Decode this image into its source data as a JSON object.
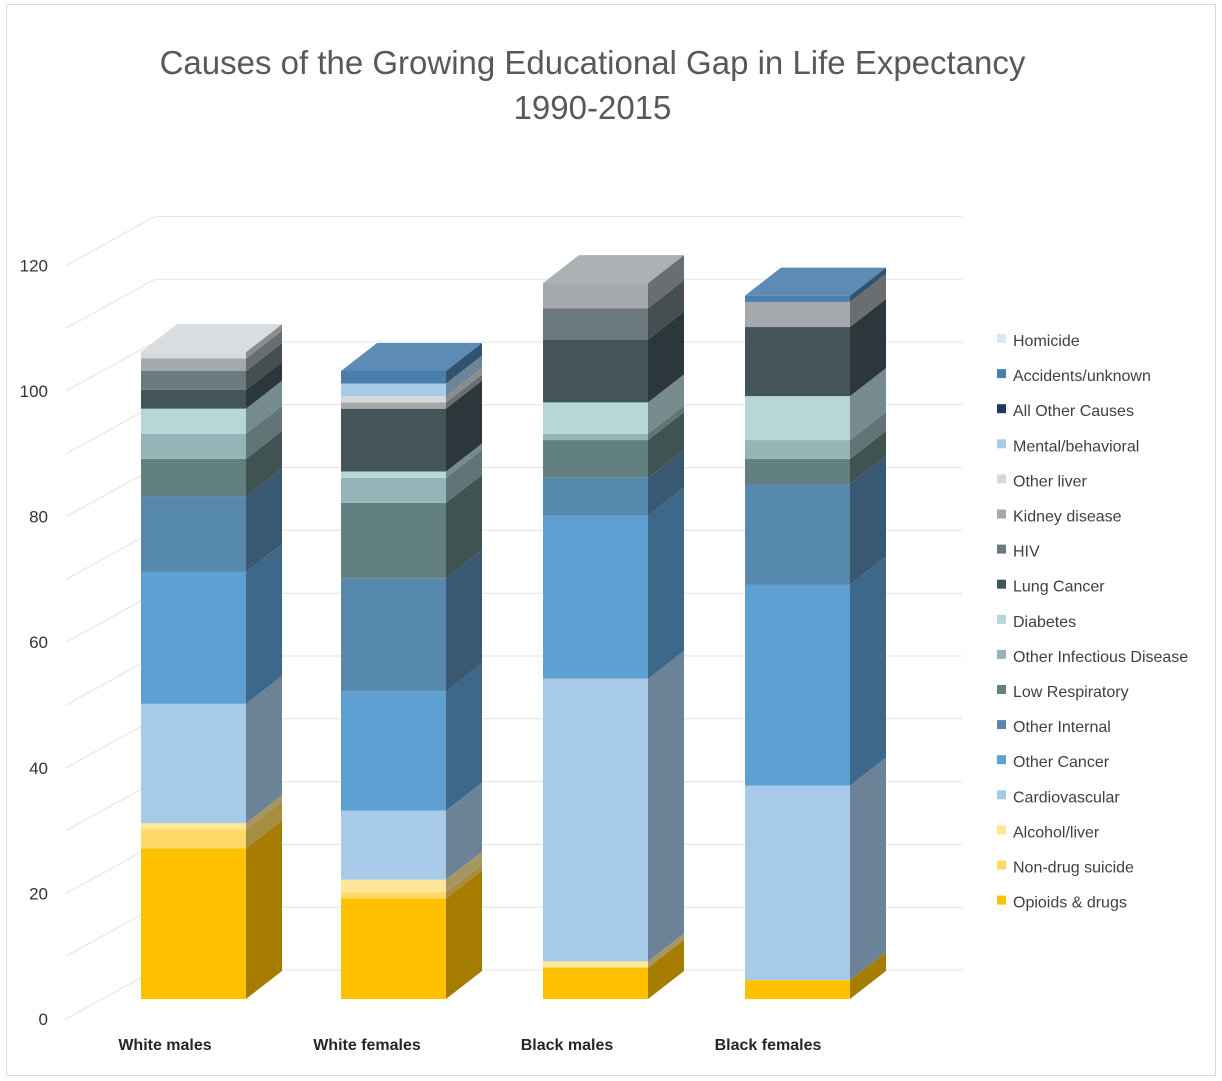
{
  "chart_data": {
    "type": "bar",
    "stacked": true,
    "three_d": true,
    "title": "Causes of the Growing Educational Gap in Life Expectancy",
    "subtitle": "1990-2015",
    "xlabel": "",
    "ylabel": "",
    "ylim": [
      0,
      120
    ],
    "y_ticks": [
      "0",
      "20",
      "40",
      "60",
      "80",
      "100",
      "120"
    ],
    "categories": [
      "White males",
      "White females",
      "Black males",
      "Black females"
    ],
    "grid": true,
    "legend_position": "right",
    "series": [
      {
        "name": "Opioids & drugs",
        "color": "#FFC000",
        "values": [
          24,
          16,
          5,
          3
        ]
      },
      {
        "name": "Non-drug suicide",
        "color": "#FFD966",
        "values": [
          3,
          1,
          0,
          0
        ]
      },
      {
        "name": "Alcohol/liver",
        "color": "#FFE699",
        "values": [
          1,
          2,
          1,
          0
        ]
      },
      {
        "name": "Cardiovascular",
        "color": "#A6CAE8",
        "values": [
          19,
          11,
          45,
          31
        ]
      },
      {
        "name": "Other Cancer",
        "color": "#5FA0D2",
        "values": [
          21,
          19,
          26,
          32
        ]
      },
      {
        "name": "Other Internal",
        "color": "#5788AE",
        "values": [
          12,
          18,
          6,
          16
        ]
      },
      {
        "name": "Low Respiratory",
        "color": "#61807F",
        "values": [
          6,
          12,
          6,
          4
        ]
      },
      {
        "name": "Other Infectious Disease",
        "color": "#95B4B7",
        "values": [
          4,
          4,
          1,
          3
        ]
      },
      {
        "name": "Diabetes",
        "color": "#B6D6D8",
        "values": [
          4,
          1,
          5,
          7
        ]
      },
      {
        "name": "Lung Cancer",
        "color": "#44555A",
        "values": [
          3,
          10,
          10,
          11
        ]
      },
      {
        "name": "HIV",
        "color": "#6A7A7E",
        "values": [
          3,
          0,
          5,
          0
        ]
      },
      {
        "name": "Kidney disease",
        "color": "#A3A9AC",
        "values": [
          2,
          1,
          4,
          4
        ]
      },
      {
        "name": "Other liver",
        "color": "#D5D9DB",
        "values": [
          1,
          1,
          0,
          0
        ]
      },
      {
        "name": "Mental/behavioral",
        "color": "#A7CCEA",
        "values": [
          0,
          2,
          0,
          0
        ]
      },
      {
        "name": "All Other Causes",
        "color": "#203864",
        "values": [
          0,
          0,
          0,
          0
        ]
      },
      {
        "name": "Accidents/unknown",
        "color": "#4A7FAB",
        "values": [
          0,
          2,
          0,
          1
        ]
      },
      {
        "name": "Homicide",
        "color": "#DCE6F2",
        "values": [
          0,
          0,
          0,
          0
        ]
      }
    ]
  }
}
